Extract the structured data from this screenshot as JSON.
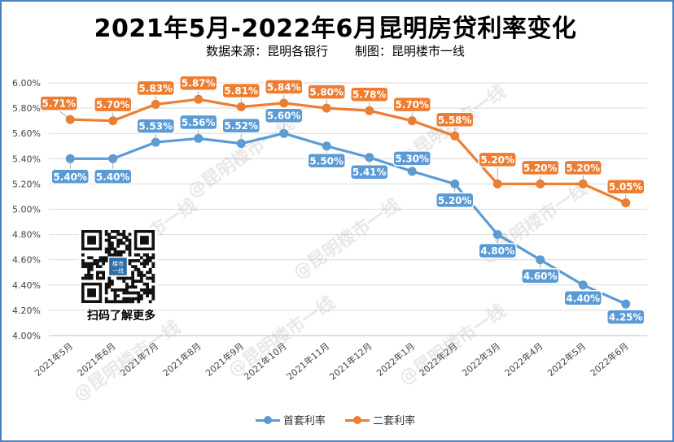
{
  "title": "2021年5月-2022年6月昆明房贷利率变化",
  "subtitle": {
    "source": "数据来源：昆明各银行",
    "maker": "制图：昆明楼市一线"
  },
  "qr": {
    "caption": "扫码了解更多",
    "center_text": "楼市一线"
  },
  "watermark": "@昆明楼市一线",
  "chart_data": {
    "type": "line",
    "categories": [
      "2021年5月",
      "2021年6月",
      "2021年7月",
      "2021年8月",
      "2021年9月",
      "2021年10月",
      "2021年11月",
      "2021年12月",
      "2022年1月",
      "2022年2月",
      "2022年3月",
      "2022年4月",
      "2022年5月",
      "2022年6月"
    ],
    "series": [
      {
        "name": "首套利率",
        "color": "#5b9bd5",
        "values": [
          5.4,
          5.4,
          5.53,
          5.56,
          5.52,
          5.6,
          5.5,
          5.41,
          5.3,
          5.2,
          4.8,
          4.6,
          4.4,
          4.25
        ],
        "labels": [
          "5.40%",
          "5.40%",
          "5.53%",
          "5.56%",
          "5.52%",
          "5.60%",
          "5.50%",
          "5.41%",
          "5.30%",
          "5.20%",
          "4.80%",
          "4.60%",
          "4.40%",
          "4.25%"
        ]
      },
      {
        "name": "二套利率",
        "color": "#ed7d31",
        "values": [
          5.71,
          5.7,
          5.83,
          5.87,
          5.81,
          5.84,
          5.8,
          5.78,
          5.7,
          5.58,
          5.2,
          5.2,
          5.2,
          5.05
        ],
        "labels": [
          "5.71%",
          "5.70%",
          "5.83%",
          "5.87%",
          "5.81%",
          "5.84%",
          "5.80%",
          "5.78%",
          "5.70%",
          "5.58%",
          "5.20%",
          "5.20%",
          "5.20%",
          "5.05%"
        ]
      }
    ],
    "ylim": [
      4.0,
      6.0
    ],
    "yticks": [
      "4.00%",
      "4.20%",
      "4.40%",
      "4.60%",
      "4.80%",
      "5.00%",
      "5.20%",
      "5.40%",
      "5.60%",
      "5.80%",
      "6.00%"
    ],
    "grid": true,
    "legend": "bottom"
  }
}
